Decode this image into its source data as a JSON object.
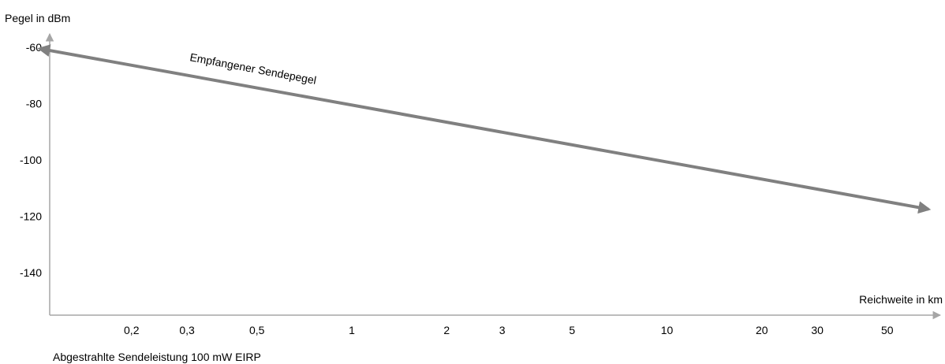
{
  "chart_data": {
    "type": "line",
    "title": "",
    "ylabel": "Pegel in dBm",
    "xlabel": "Reichweite in km",
    "footnote": "Abgestrahlte Sendeleistung 100 mW EIRP",
    "x_scale": "log",
    "x_ticks": [
      {
        "value": 0.2,
        "label": "0,2"
      },
      {
        "value": 0.3,
        "label": "0,3"
      },
      {
        "value": 0.5,
        "label": "0,5"
      },
      {
        "value": 1,
        "label": "1"
      },
      {
        "value": 2,
        "label": "2"
      },
      {
        "value": 3,
        "label": "3"
      },
      {
        "value": 5,
        "label": "5"
      },
      {
        "value": 10,
        "label": "10"
      },
      {
        "value": 20,
        "label": "20"
      },
      {
        "value": 30,
        "label": "30"
      },
      {
        "value": 50,
        "label": "50"
      }
    ],
    "y_ticks": [
      {
        "value": -60,
        "label": "-60"
      },
      {
        "value": -80,
        "label": "-80"
      },
      {
        "value": -100,
        "label": "-100"
      },
      {
        "value": -120,
        "label": "-120"
      },
      {
        "value": -140,
        "label": "-140"
      }
    ],
    "ylim": [
      -155,
      -56
    ],
    "grid": false,
    "series": [
      {
        "name": "Empfangener Sendepegel",
        "x": [
          0.1,
          70
        ],
        "y": [
          -60.5,
          -117.5
        ],
        "color": "#808080"
      }
    ]
  }
}
